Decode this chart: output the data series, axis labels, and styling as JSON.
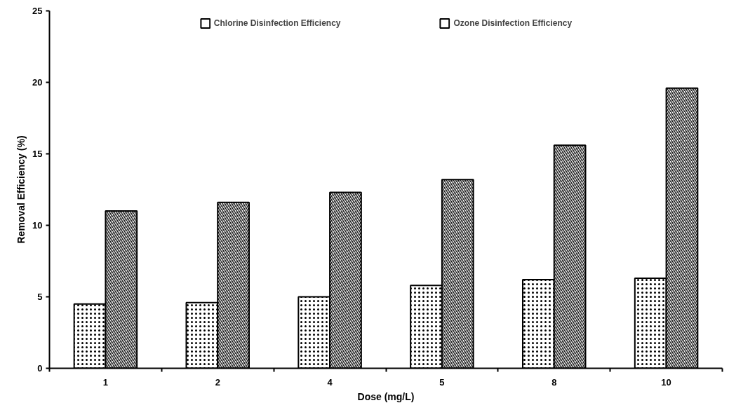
{
  "chart_data": {
    "type": "bar",
    "xlabel": "Dose (mg/L)",
    "ylabel": "Removal Efficiency (%)",
    "categories": [
      "1",
      "2",
      "4",
      "5",
      "8",
      "10"
    ],
    "series": [
      {
        "name": "Chlorine Disinfection Efficiency",
        "color": "#ffffff",
        "values": [
          4.5,
          4.6,
          5.0,
          5.8,
          6.2,
          6.3
        ]
      },
      {
        "name": "Ozone Disinfection Efficiency",
        "color": "#ffffff",
        "values": [
          11.0,
          11.6,
          12.3,
          13.2,
          15.6,
          19.6
        ]
      }
    ],
    "ylim": [
      0,
      25
    ],
    "yticks": [
      0,
      5,
      10,
      15,
      20,
      25
    ],
    "grid": false,
    "legend": "top"
  }
}
